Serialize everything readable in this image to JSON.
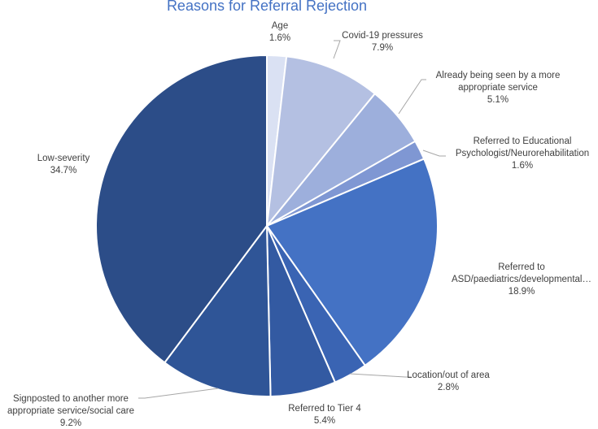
{
  "chart_data": {
    "type": "pie",
    "title": "Reasons for Referral Rejection",
    "slices": [
      {
        "label": "Age",
        "value": 1.6,
        "display": "1.6%",
        "color": "#dae1f3"
      },
      {
        "label": "Covid-19 pressures",
        "value": 7.9,
        "display": "7.9%",
        "color": "#b4c0e2"
      },
      {
        "label": "Already being seen by a more appropriate service",
        "value": 5.1,
        "display": "5.1%",
        "color": "#9dafdc"
      },
      {
        "label": "Referred to Educational Psychologist/Neurorehabilitation",
        "value": 1.6,
        "display": "1.6%",
        "color": "#7f97d3"
      },
      {
        "label": "Referred to ASD/paediatrics/developmental…",
        "value": 18.9,
        "display": "18.9%",
        "color": "#4472c4"
      },
      {
        "label": "Location/out of area",
        "value": 2.8,
        "display": "2.8%",
        "color": "#3a64b3"
      },
      {
        "label": "Referred to Tier 4",
        "value": 5.4,
        "display": "5.4%",
        "color": "#335aa2"
      },
      {
        "label": "Signposted to another more appropriate service/social care",
        "value": 9.2,
        "display": "9.2%",
        "color": "#2f5597"
      },
      {
        "label": "Low-severity",
        "value": 34.7,
        "display": "34.7%",
        "color": "#2c4d88"
      }
    ],
    "legend": "none",
    "label_position": "outside"
  }
}
